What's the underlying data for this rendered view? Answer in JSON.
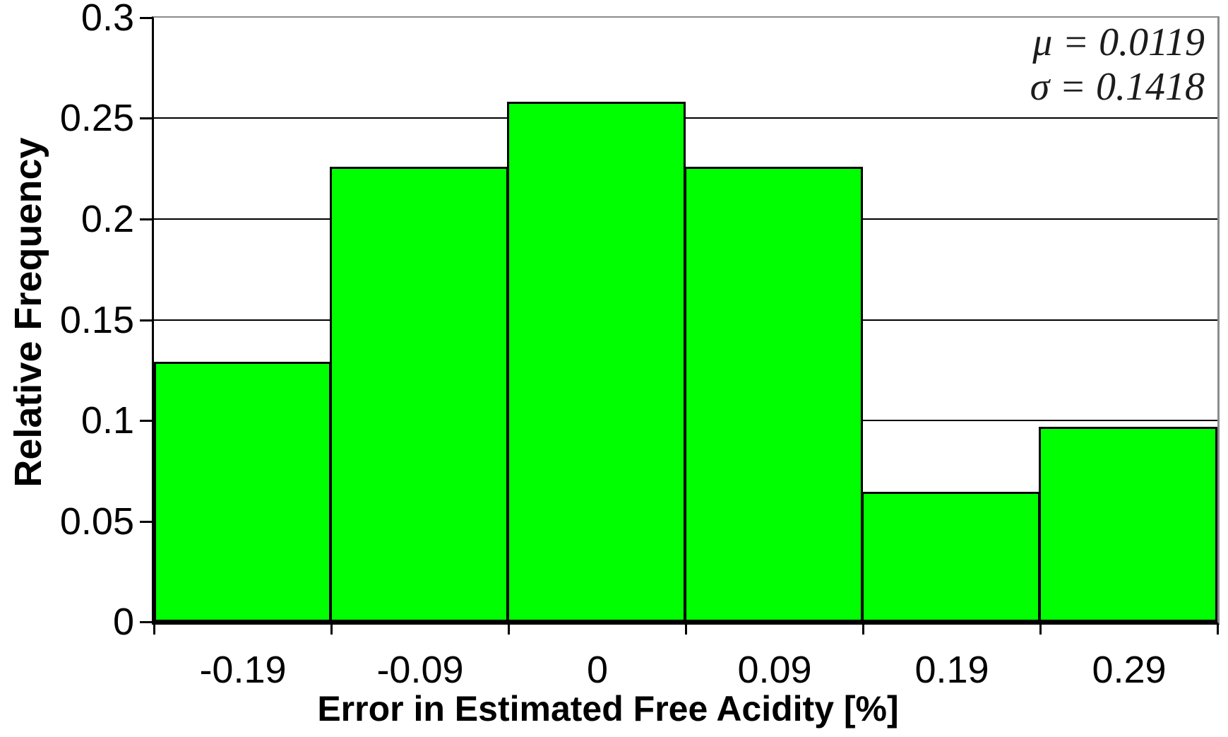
{
  "chart_data": {
    "type": "bar",
    "subtype": "histogram",
    "title": "",
    "xlabel": "Error in Estimated Free Acidity [%]",
    "ylabel": "Relative Frequency",
    "categories": [
      "-0.19",
      "-0.09",
      "0",
      "0.09",
      "0.19",
      "0.29"
    ],
    "values": [
      0.129,
      0.2258,
      0.2581,
      0.2258,
      0.0645,
      0.0968
    ],
    "ylim": [
      0,
      0.3
    ],
    "ytick_values": [
      0.3,
      0.25,
      0.2,
      0.15,
      0.1,
      0.05,
      0
    ],
    "ytick_labels": [
      "0.3",
      "0.25",
      "0.2",
      "0.15",
      "0.1",
      "0.05",
      "0"
    ],
    "grid": true,
    "legend": false,
    "bar_color": "#00FF00",
    "bar_border_color": "#000000",
    "gridline_color": "#000000",
    "plot_border_color": "#8C8C8C",
    "axis_color": "#000000",
    "annotations": [
      "μ = 0.0119",
      "σ = 0.1418"
    ]
  }
}
